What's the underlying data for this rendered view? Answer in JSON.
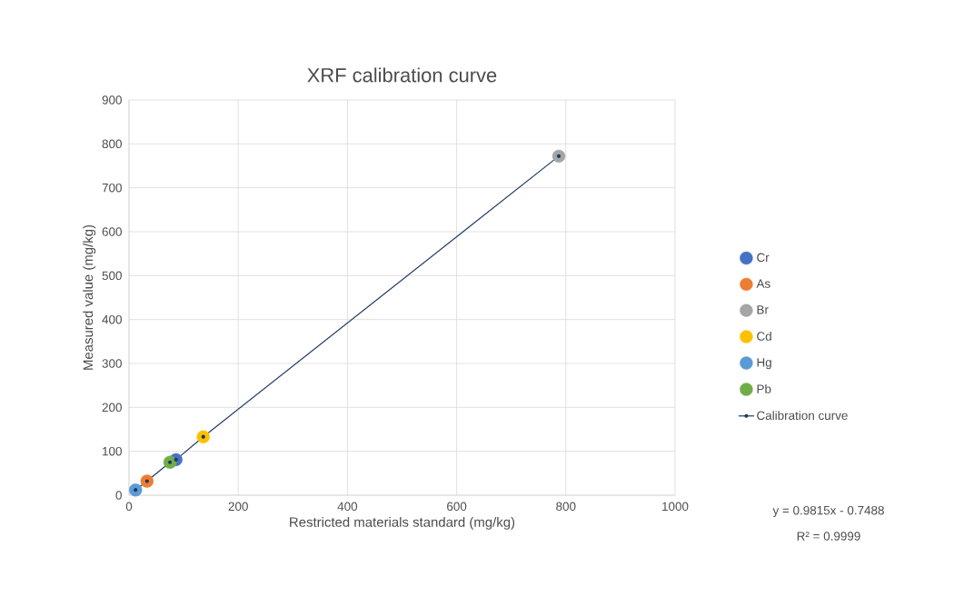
{
  "chart_data": {
    "type": "scatter",
    "title": "XRF calibration curve",
    "xlabel": "Restricted materials standard (mg/kg)",
    "ylabel": "Measured value (mg/kg)",
    "series": [
      {
        "name": "Cr",
        "color": "#4472c4",
        "x": [
          86
        ],
        "values": [
          81
        ]
      },
      {
        "name": "As",
        "color": "#ed7d31",
        "x": [
          33
        ],
        "values": [
          32
        ]
      },
      {
        "name": "Br",
        "color": "#a5a5a5",
        "x": [
          787
        ],
        "values": [
          772
        ]
      },
      {
        "name": "Cd",
        "color": "#ffc000",
        "x": [
          136
        ],
        "values": [
          133
        ]
      },
      {
        "name": "Hg",
        "color": "#5b9bd5",
        "x": [
          12
        ],
        "values": [
          12
        ]
      },
      {
        "name": "Pb",
        "color": "#70ad47",
        "x": [
          75
        ],
        "values": [
          75
        ]
      },
      {
        "name": "Calibration curve",
        "type": "line",
        "color": "#1f3864",
        "x": [
          12,
          33,
          75,
          86,
          136,
          787
        ],
        "values": [
          12,
          32,
          75,
          81,
          133,
          772
        ]
      }
    ],
    "xlim": [
      0,
      1000
    ],
    "xticks": [
      0,
      200,
      400,
      600,
      800,
      1000
    ],
    "ylim": [
      0,
      900
    ],
    "yticks": [
      0,
      100,
      200,
      300,
      400,
      500,
      600,
      700,
      800,
      900
    ],
    "grid": true,
    "legend": "right",
    "marker": "circle",
    "annotations": [
      "y = 0.9815x - 0.7488",
      "R² = 0.9999"
    ]
  }
}
